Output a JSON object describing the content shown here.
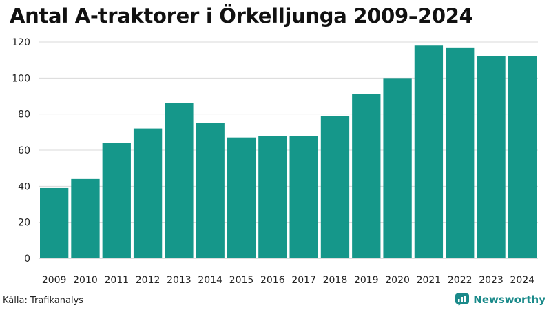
{
  "title": "Antal A-traktorer i Örkelljunga 2009–2024",
  "source": "Källa: Trafikanalys",
  "brand": {
    "name": "Newsworthy",
    "icon": "bar-chart-icon"
  },
  "colors": {
    "bar": "#15978a",
    "grid": "#d9d9d9",
    "brand": "#1a8a8a"
  },
  "chart_data": {
    "type": "bar",
    "categories": [
      "2009",
      "2010",
      "2011",
      "2012",
      "2013",
      "2014",
      "2015",
      "2016",
      "2017",
      "2018",
      "2019",
      "2020",
      "2021",
      "2022",
      "2023",
      "2024"
    ],
    "values": [
      39,
      44,
      64,
      72,
      86,
      75,
      67,
      68,
      68,
      79,
      91,
      100,
      118,
      117,
      112,
      112
    ],
    "ylim": [
      0,
      120
    ],
    "yticks": [
      0,
      20,
      40,
      60,
      80,
      100,
      120
    ],
    "grid": true,
    "xlabel": "",
    "ylabel": ""
  }
}
